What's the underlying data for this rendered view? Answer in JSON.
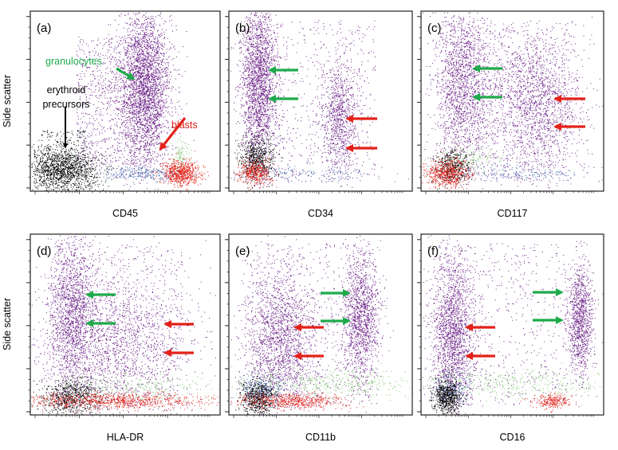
{
  "chart_data": {
    "type": "scatter",
    "layout": "2x3 grid of flow cytometry dot plots",
    "shared_ylabel": "Side scatter",
    "colors": {
      "granulocytes": "#6b1f86",
      "erythroid": "#000000",
      "blasts": "#e32119",
      "lymphocytes": "#3a5ba8",
      "monocytes": "#7ac36a",
      "arrow_green": "#1faa4b",
      "arrow_red": "#e32119"
    },
    "panels": [
      {
        "label": "(a)",
        "xlabel": "CD45",
        "annotations": [
          {
            "text": "granulocytes",
            "color": "#1faa4b"
          },
          {
            "text": "erythroid",
            "color": "#000000"
          },
          {
            "text": "precursors",
            "color": "#000000"
          },
          {
            "text": "blasts",
            "color": "#e32119"
          }
        ],
        "arrows": [
          {
            "color": "green",
            "direction": "down-right"
          },
          {
            "color": "black",
            "direction": "down"
          },
          {
            "color": "red",
            "direction": "down-left"
          }
        ],
        "populations": [
          {
            "name": "granulocytes",
            "color": "#6b1f86",
            "count": 3000,
            "center": [
              0.6,
              0.58
            ],
            "spread": [
              0.07,
              0.22
            ],
            "shape": "gauss"
          },
          {
            "name": "granulocytes",
            "color": "#6b1f86",
            "count": 900,
            "center": [
              0.46,
              0.5
            ],
            "spread": [
              0.22,
              0.36
            ],
            "shape": "uniform"
          },
          {
            "name": "erythroid",
            "color": "#000000",
            "count": 1500,
            "center": [
              0.17,
              0.12
            ],
            "spread": [
              0.1,
              0.06
            ],
            "shape": "gauss"
          },
          {
            "name": "erythroid",
            "color": "#000000",
            "count": 200,
            "center": [
              0.17,
              0.22
            ],
            "spread": [
              0.12,
              0.12
            ],
            "shape": "uniform"
          },
          {
            "name": "lymphocytes",
            "color": "#3a5ba8",
            "count": 250,
            "center": [
              0.58,
              0.1
            ],
            "spread": [
              0.1,
              0.02
            ],
            "shape": "gauss"
          },
          {
            "name": "monocytes",
            "color": "#7ac36a",
            "count": 100,
            "center": [
              0.79,
              0.2
            ],
            "spread": [
              0.03,
              0.05
            ],
            "shape": "gauss"
          },
          {
            "name": "blasts",
            "color": "#e32119",
            "count": 700,
            "center": [
              0.79,
              0.1
            ],
            "spread": [
              0.05,
              0.035
            ],
            "shape": "gauss"
          }
        ]
      },
      {
        "label": "(b)",
        "xlabel": "CD34",
        "arrows": [
          {
            "color": "green",
            "direction": "left"
          },
          {
            "color": "green",
            "direction": "left"
          },
          {
            "color": "red",
            "direction": "left"
          },
          {
            "color": "red",
            "direction": "left"
          }
        ],
        "populations": [
          {
            "name": "granulocytes",
            "color": "#6b1f86",
            "count": 2200,
            "center": [
              0.16,
              0.6
            ],
            "spread": [
              0.05,
              0.22
            ],
            "shape": "gauss"
          },
          {
            "name": "blasts-ssc",
            "color": "#6b1f86",
            "count": 900,
            "center": [
              0.6,
              0.4
            ],
            "spread": [
              0.05,
              0.16
            ],
            "shape": "gauss"
          },
          {
            "name": "background",
            "color": "#6b1f86",
            "count": 600,
            "center": [
              0.45,
              0.5
            ],
            "spread": [
              0.35,
              0.45
            ],
            "shape": "uniform"
          },
          {
            "name": "lymphocytes",
            "color": "#3a5ba8",
            "count": 150,
            "center": [
              0.4,
              0.1
            ],
            "spread": [
              0.2,
              0.02
            ],
            "shape": "gauss"
          },
          {
            "name": "erythroid",
            "color": "#000000",
            "count": 600,
            "center": [
              0.15,
              0.18
            ],
            "spread": [
              0.05,
              0.06
            ],
            "shape": "gauss"
          },
          {
            "name": "blasts",
            "color": "#e32119",
            "count": 400,
            "center": [
              0.14,
              0.1
            ],
            "spread": [
              0.045,
              0.035
            ],
            "shape": "gauss"
          }
        ]
      },
      {
        "label": "(c)",
        "xlabel": "CD117",
        "arrows": [
          {
            "color": "green",
            "direction": "left"
          },
          {
            "color": "green",
            "direction": "left"
          },
          {
            "color": "red",
            "direction": "left"
          },
          {
            "color": "red",
            "direction": "left"
          }
        ],
        "populations": [
          {
            "name": "granulocytes",
            "color": "#6b1f86",
            "count": 1800,
            "center": [
              0.23,
              0.6
            ],
            "spread": [
              0.08,
              0.22
            ],
            "shape": "gauss"
          },
          {
            "name": "blasts-ssc",
            "color": "#6b1f86",
            "count": 1800,
            "center": [
              0.62,
              0.48
            ],
            "spread": [
              0.13,
              0.2
            ],
            "shape": "gauss"
          },
          {
            "name": "background",
            "color": "#6b1f86",
            "count": 500,
            "center": [
              0.45,
              0.5
            ],
            "spread": [
              0.35,
              0.45
            ],
            "shape": "uniform"
          },
          {
            "name": "lymphocytes",
            "color": "#3a5ba8",
            "count": 200,
            "center": [
              0.5,
              0.1
            ],
            "spread": [
              0.22,
              0.02
            ],
            "shape": "gauss"
          },
          {
            "name": "monocytes",
            "color": "#7ac36a",
            "count": 150,
            "center": [
              0.25,
              0.18
            ],
            "spread": [
              0.08,
              0.04
            ],
            "shape": "gauss"
          },
          {
            "name": "erythroid",
            "color": "#000000",
            "count": 450,
            "center": [
              0.17,
              0.13
            ],
            "spread": [
              0.05,
              0.05
            ],
            "shape": "gauss"
          },
          {
            "name": "blasts",
            "color": "#e32119",
            "count": 600,
            "center": [
              0.14,
              0.1
            ],
            "spread": [
              0.06,
              0.04
            ],
            "shape": "gauss"
          }
        ]
      },
      {
        "label": "(d)",
        "xlabel": "HLA-DR",
        "arrows": [
          {
            "color": "green",
            "direction": "left"
          },
          {
            "color": "green",
            "direction": "left"
          },
          {
            "color": "red",
            "direction": "left"
          },
          {
            "color": "red",
            "direction": "left"
          }
        ],
        "populations": [
          {
            "name": "granulocytes",
            "color": "#6b1f86",
            "count": 1600,
            "center": [
              0.22,
              0.57
            ],
            "spread": [
              0.06,
              0.22
            ],
            "shape": "gauss"
          },
          {
            "name": "blasts-ssc",
            "color": "#6b1f86",
            "count": 1700,
            "center": [
              0.48,
              0.4
            ],
            "spread": [
              0.2,
              0.2
            ],
            "shape": "gauss"
          },
          {
            "name": "background",
            "color": "#6b1f86",
            "count": 600,
            "center": [
              0.45,
              0.5
            ],
            "spread": [
              0.35,
              0.45
            ],
            "shape": "uniform"
          },
          {
            "name": "monocytes",
            "color": "#7ac36a",
            "count": 250,
            "center": [
              0.62,
              0.15
            ],
            "spread": [
              0.22,
              0.035
            ],
            "shape": "gauss"
          },
          {
            "name": "erythroid",
            "color": "#000000",
            "count": 700,
            "center": [
              0.22,
              0.1
            ],
            "spread": [
              0.08,
              0.05
            ],
            "shape": "gauss"
          },
          {
            "name": "blasts",
            "color": "#e32119",
            "count": 900,
            "center": [
              0.42,
              0.08
            ],
            "spread": [
              0.24,
              0.022
            ],
            "shape": "gauss"
          }
        ]
      },
      {
        "label": "(e)",
        "xlabel": "CD11b",
        "arrows": [
          {
            "color": "green",
            "direction": "right"
          },
          {
            "color": "green",
            "direction": "right"
          },
          {
            "color": "red",
            "direction": "left"
          },
          {
            "color": "red",
            "direction": "left"
          }
        ],
        "populations": [
          {
            "name": "granulocytes",
            "color": "#6b1f86",
            "count": 1300,
            "center": [
              0.72,
              0.55
            ],
            "spread": [
              0.05,
              0.18
            ],
            "shape": "gauss"
          },
          {
            "name": "blasts-ssc",
            "color": "#6b1f86",
            "count": 1800,
            "center": [
              0.28,
              0.42
            ],
            "spread": [
              0.1,
              0.2
            ],
            "shape": "gauss"
          },
          {
            "name": "background",
            "color": "#6b1f86",
            "count": 600,
            "center": [
              0.45,
              0.5
            ],
            "spread": [
              0.35,
              0.45
            ],
            "shape": "uniform"
          },
          {
            "name": "monocytes",
            "color": "#7ac36a",
            "count": 400,
            "center": [
              0.55,
              0.18
            ],
            "spread": [
              0.25,
              0.04
            ],
            "shape": "gauss"
          },
          {
            "name": "lymphocytes",
            "color": "#3a5ba8",
            "count": 250,
            "center": [
              0.17,
              0.14
            ],
            "spread": [
              0.06,
              0.04
            ],
            "shape": "gauss"
          },
          {
            "name": "erythroid",
            "color": "#000000",
            "count": 600,
            "center": [
              0.16,
              0.1
            ],
            "spread": [
              0.05,
              0.05
            ],
            "shape": "gauss"
          },
          {
            "name": "blasts",
            "color": "#e32119",
            "count": 600,
            "center": [
              0.35,
              0.08
            ],
            "spread": [
              0.15,
              0.022
            ],
            "shape": "gauss"
          }
        ]
      },
      {
        "label": "(f)",
        "xlabel": "CD16",
        "arrows": [
          {
            "color": "green",
            "direction": "right"
          },
          {
            "color": "green",
            "direction": "right"
          },
          {
            "color": "red",
            "direction": "left"
          },
          {
            "color": "red",
            "direction": "left"
          }
        ],
        "populations": [
          {
            "name": "granulocytes",
            "color": "#6b1f86",
            "count": 1100,
            "center": [
              0.87,
              0.53
            ],
            "spread": [
              0.035,
              0.16
            ],
            "shape": "gauss"
          },
          {
            "name": "blasts-ssc",
            "color": "#6b1f86",
            "count": 1900,
            "center": [
              0.17,
              0.45
            ],
            "spread": [
              0.06,
              0.22
            ],
            "shape": "gauss"
          },
          {
            "name": "background",
            "color": "#6b1f86",
            "count": 600,
            "center": [
              0.45,
              0.5
            ],
            "spread": [
              0.35,
              0.45
            ],
            "shape": "uniform"
          },
          {
            "name": "monocytes",
            "color": "#7ac36a",
            "count": 350,
            "center": [
              0.5,
              0.18
            ],
            "spread": [
              0.28,
              0.04
            ],
            "shape": "gauss"
          },
          {
            "name": "lymphocytes",
            "color": "#3a5ba8",
            "count": 200,
            "center": [
              0.16,
              0.14
            ],
            "spread": [
              0.05,
              0.04
            ],
            "shape": "gauss"
          },
          {
            "name": "erythroid",
            "color": "#000000",
            "count": 650,
            "center": [
              0.14,
              0.1
            ],
            "spread": [
              0.04,
              0.05
            ],
            "shape": "gauss"
          },
          {
            "name": "blasts",
            "color": "#e32119",
            "count": 250,
            "center": [
              0.72,
              0.08
            ],
            "spread": [
              0.05,
              0.02
            ],
            "shape": "gauss"
          }
        ]
      }
    ]
  }
}
